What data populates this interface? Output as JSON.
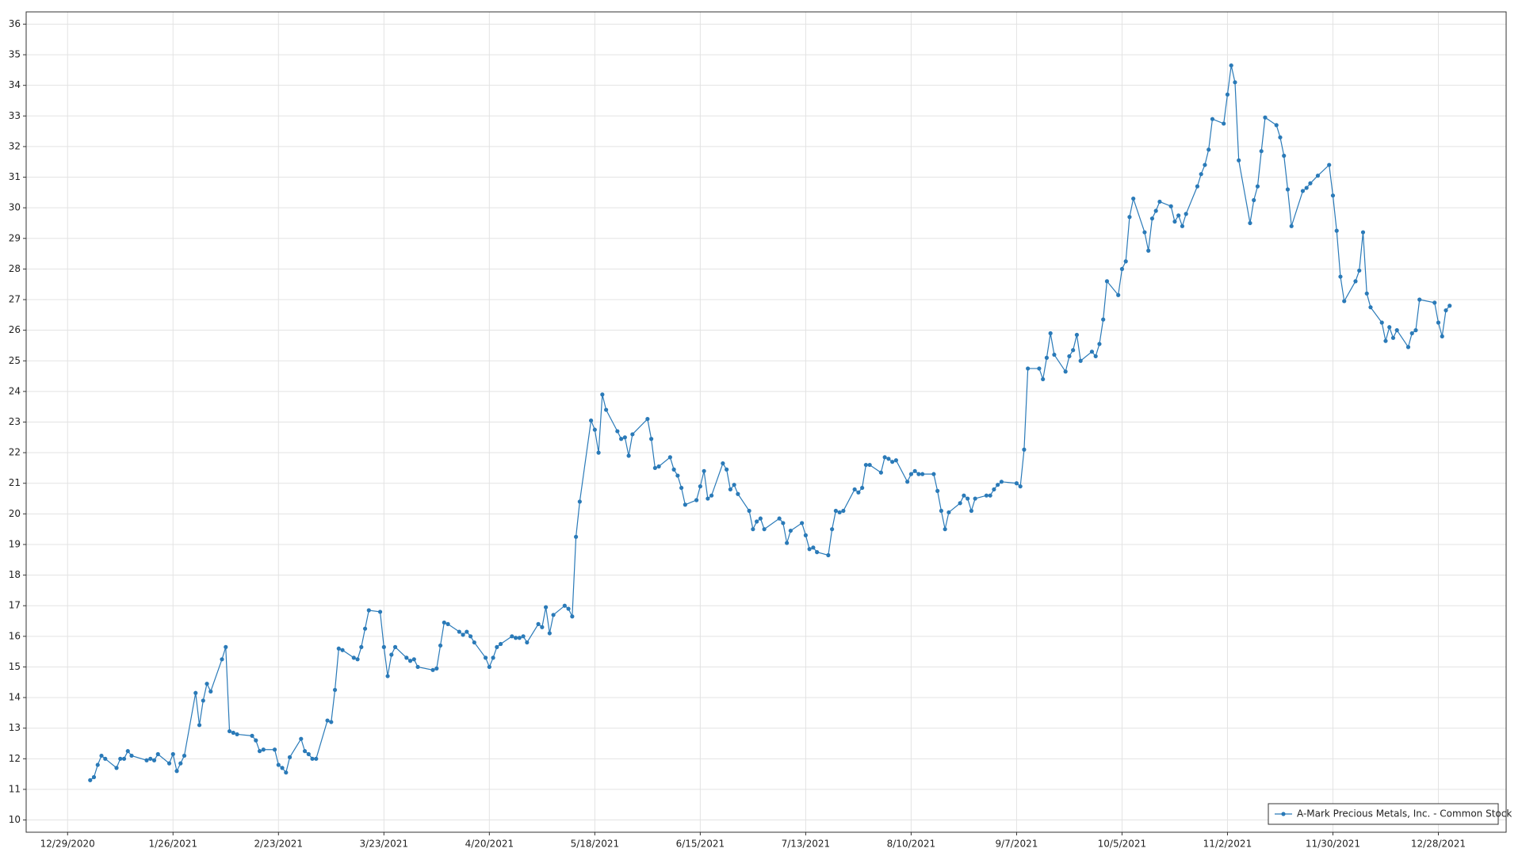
{
  "chart_data": {
    "type": "line",
    "x": [
      "1/4/2021",
      "1/5/2021",
      "1/6/2021",
      "1/7/2021",
      "1/8/2021",
      "1/11/2021",
      "1/12/2021",
      "1/13/2021",
      "1/14/2021",
      "1/15/2021",
      "1/19/2021",
      "1/20/2021",
      "1/21/2021",
      "1/22/2021",
      "1/25/2021",
      "1/26/2021",
      "1/27/2021",
      "1/28/2021",
      "1/29/2021",
      "2/1/2021",
      "2/2/2021",
      "2/3/2021",
      "2/4/2021",
      "2/5/2021",
      "2/8/2021",
      "2/9/2021",
      "2/10/2021",
      "2/11/2021",
      "2/12/2021",
      "2/16/2021",
      "2/17/2021",
      "2/18/2021",
      "2/19/2021",
      "2/22/2021",
      "2/23/2021",
      "2/24/2021",
      "2/25/2021",
      "2/26/2021",
      "3/1/2021",
      "3/2/2021",
      "3/3/2021",
      "3/4/2021",
      "3/5/2021",
      "3/8/2021",
      "3/9/2021",
      "3/10/2021",
      "3/11/2021",
      "3/12/2021",
      "3/15/2021",
      "3/16/2021",
      "3/17/2021",
      "3/18/2021",
      "3/19/2021",
      "3/22/2021",
      "3/23/2021",
      "3/24/2021",
      "3/25/2021",
      "3/26/2021",
      "3/29/2021",
      "3/30/2021",
      "3/31/2021",
      "4/1/2021",
      "4/5/2021",
      "4/6/2021",
      "4/7/2021",
      "4/8/2021",
      "4/9/2021",
      "4/12/2021",
      "4/13/2021",
      "4/14/2021",
      "4/15/2021",
      "4/16/2021",
      "4/19/2021",
      "4/20/2021",
      "4/21/2021",
      "4/22/2021",
      "4/23/2021",
      "4/26/2021",
      "4/27/2021",
      "4/28/2021",
      "4/29/2021",
      "4/30/2021",
      "5/3/2021",
      "5/4/2021",
      "5/5/2021",
      "5/6/2021",
      "5/7/2021",
      "5/10/2021",
      "5/11/2021",
      "5/12/2021",
      "5/13/2021",
      "5/14/2021",
      "5/17/2021",
      "5/18/2021",
      "5/19/2021",
      "5/20/2021",
      "5/21/2021",
      "5/24/2021",
      "5/25/2021",
      "5/26/2021",
      "5/27/2021",
      "5/28/2021",
      "6/1/2021",
      "6/2/2021",
      "6/3/2021",
      "6/4/2021",
      "6/7/2021",
      "6/8/2021",
      "6/9/2021",
      "6/10/2021",
      "6/11/2021",
      "6/14/2021",
      "6/15/2021",
      "6/16/2021",
      "6/17/2021",
      "6/18/2021",
      "6/21/2021",
      "6/22/2021",
      "6/23/2021",
      "6/24/2021",
      "6/25/2021",
      "6/28/2021",
      "6/29/2021",
      "6/30/2021",
      "7/1/2021",
      "7/2/2021",
      "7/6/2021",
      "7/7/2021",
      "7/8/2021",
      "7/9/2021",
      "7/12/2021",
      "7/13/2021",
      "7/14/2021",
      "7/15/2021",
      "7/16/2021",
      "7/19/2021",
      "7/20/2021",
      "7/21/2021",
      "7/22/2021",
      "7/23/2021",
      "7/26/2021",
      "7/27/2021",
      "7/28/2021",
      "7/29/2021",
      "7/30/2021",
      "8/2/2021",
      "8/3/2021",
      "8/4/2021",
      "8/5/2021",
      "8/6/2021",
      "8/9/2021",
      "8/10/2021",
      "8/11/2021",
      "8/12/2021",
      "8/13/2021",
      "8/16/2021",
      "8/17/2021",
      "8/18/2021",
      "8/19/2021",
      "8/20/2021",
      "8/23/2021",
      "8/24/2021",
      "8/25/2021",
      "8/26/2021",
      "8/27/2021",
      "8/30/2021",
      "8/31/2021",
      "9/1/2021",
      "9/2/2021",
      "9/3/2021",
      "9/7/2021",
      "9/8/2021",
      "9/9/2021",
      "9/10/2021",
      "9/13/2021",
      "9/14/2021",
      "9/15/2021",
      "9/16/2021",
      "9/17/2021",
      "9/20/2021",
      "9/21/2021",
      "9/22/2021",
      "9/23/2021",
      "9/24/2021",
      "9/27/2021",
      "9/28/2021",
      "9/29/2021",
      "9/30/2021",
      "10/1/2021",
      "10/4/2021",
      "10/5/2021",
      "10/6/2021",
      "10/7/2021",
      "10/8/2021",
      "10/11/2021",
      "10/12/2021",
      "10/13/2021",
      "10/14/2021",
      "10/15/2021",
      "10/18/2021",
      "10/19/2021",
      "10/20/2021",
      "10/21/2021",
      "10/22/2021",
      "10/25/2021",
      "10/26/2021",
      "10/27/2021",
      "10/28/2021",
      "10/29/2021",
      "11/1/2021",
      "11/2/2021",
      "11/3/2021",
      "11/4/2021",
      "11/5/2021",
      "11/8/2021",
      "11/9/2021",
      "11/10/2021",
      "11/11/2021",
      "11/12/2021",
      "11/15/2021",
      "11/16/2021",
      "11/17/2021",
      "11/18/2021",
      "11/19/2021",
      "11/22/2021",
      "11/23/2021",
      "11/24/2021",
      "11/26/2021",
      "11/29/2021",
      "11/30/2021",
      "12/1/2021",
      "12/2/2021",
      "12/3/2021",
      "12/6/2021",
      "12/7/2021",
      "12/8/2021",
      "12/9/2021",
      "12/10/2021",
      "12/13/2021",
      "12/14/2021",
      "12/15/2021",
      "12/16/2021",
      "12/17/2021",
      "12/20/2021",
      "12/21/2021",
      "12/22/2021",
      "12/23/2021",
      "12/27/2021",
      "12/28/2021",
      "12/29/2021",
      "12/30/2021",
      "12/31/2021"
    ],
    "series": [
      {
        "name": "A-Mark Precious Metals, Inc. - Common Stock",
        "color": "#2a7ab8",
        "values": [
          11.3,
          11.4,
          11.8,
          12.1,
          12.0,
          11.7,
          12.0,
          12.0,
          12.25,
          12.1,
          11.95,
          12.0,
          11.95,
          12.15,
          11.85,
          12.15,
          11.6,
          11.85,
          12.1,
          14.15,
          13.1,
          13.9,
          14.45,
          14.2,
          15.25,
          15.65,
          12.9,
          12.85,
          12.8,
          12.75,
          12.6,
          12.25,
          12.3,
          12.3,
          11.8,
          11.7,
          11.55,
          12.05,
          12.65,
          12.25,
          12.15,
          12.0,
          12.0,
          13.25,
          13.2,
          14.25,
          15.6,
          15.55,
          15.3,
          15.25,
          15.65,
          16.25,
          16.85,
          16.8,
          15.65,
          14.7,
          15.4,
          15.65,
          15.3,
          15.2,
          15.25,
          15.0,
          14.9,
          14.95,
          15.7,
          16.45,
          16.4,
          16.15,
          16.05,
          16.15,
          16.0,
          15.8,
          15.3,
          15.0,
          15.3,
          15.65,
          15.75,
          16.0,
          15.95,
          15.95,
          16.0,
          15.8,
          16.4,
          16.3,
          16.95,
          16.1,
          16.7,
          17.0,
          16.9,
          16.65,
          19.25,
          20.4,
          23.05,
          22.75,
          22.0,
          23.9,
          23.4,
          22.7,
          22.45,
          22.5,
          21.9,
          22.6,
          23.1,
          22.45,
          21.5,
          21.55,
          21.85,
          21.45,
          21.25,
          20.85,
          20.3,
          20.45,
          20.9,
          21.4,
          20.5,
          20.6,
          21.65,
          21.45,
          20.8,
          20.95,
          20.65,
          20.1,
          19.5,
          19.75,
          19.85,
          19.5,
          19.85,
          19.7,
          19.05,
          19.45,
          19.7,
          19.3,
          18.85,
          18.9,
          18.75,
          18.65,
          19.5,
          20.1,
          20.05,
          20.1,
          20.8,
          20.7,
          20.85,
          21.6,
          21.6,
          21.35,
          21.85,
          21.8,
          21.7,
          21.75,
          21.05,
          21.3,
          21.4,
          21.3,
          21.3,
          21.3,
          20.75,
          20.1,
          19.5,
          20.05,
          20.35,
          20.6,
          20.5,
          20.1,
          20.5,
          20.6,
          20.6,
          20.8,
          20.95,
          21.05,
          21.0,
          20.9,
          22.1,
          24.75,
          24.75,
          24.4,
          25.1,
          25.9,
          25.2,
          24.65,
          25.15,
          25.35,
          25.85,
          25.0,
          25.3,
          25.15,
          25.55,
          26.35,
          27.6,
          27.15,
          28.0,
          28.25,
          29.7,
          30.3,
          29.2,
          28.6,
          29.65,
          29.9,
          30.2,
          30.05,
          29.55,
          29.75,
          29.4,
          29.8,
          30.7,
          31.1,
          31.4,
          31.9,
          32.9,
          32.75,
          33.7,
          34.65,
          34.1,
          31.55,
          29.5,
          30.25,
          30.7,
          31.85,
          32.95,
          32.7,
          32.3,
          31.7,
          30.6,
          29.4,
          30.55,
          30.65,
          30.8,
          31.05,
          31.4,
          30.4,
          29.25,
          27.75,
          26.95,
          27.6,
          27.95,
          29.2,
          27.2,
          26.75,
          26.25,
          25.65,
          26.1,
          25.75,
          26.0,
          25.45,
          25.9,
          26.0,
          27.0,
          26.9,
          26.25,
          25.8,
          26.65,
          26.8
        ]
      }
    ],
    "xlim": [
      "12/18/2020",
      "1/15/2022"
    ],
    "xticks": [
      "12/29/2020",
      "1/26/2021",
      "2/23/2021",
      "3/23/2021",
      "4/20/2021",
      "5/18/2021",
      "6/15/2021",
      "7/13/2021",
      "8/10/2021",
      "9/7/2021",
      "10/5/2021",
      "11/2/2021",
      "11/30/2021",
      "12/28/2021"
    ],
    "ylim": [
      9.6,
      36.4
    ],
    "yticks": [
      10,
      11,
      12,
      13,
      14,
      15,
      16,
      17,
      18,
      19,
      20,
      21,
      22,
      23,
      24,
      25,
      26,
      27,
      28,
      29,
      30,
      31,
      32,
      33,
      34,
      35,
      36
    ],
    "grid": true,
    "legend": "lower right"
  }
}
